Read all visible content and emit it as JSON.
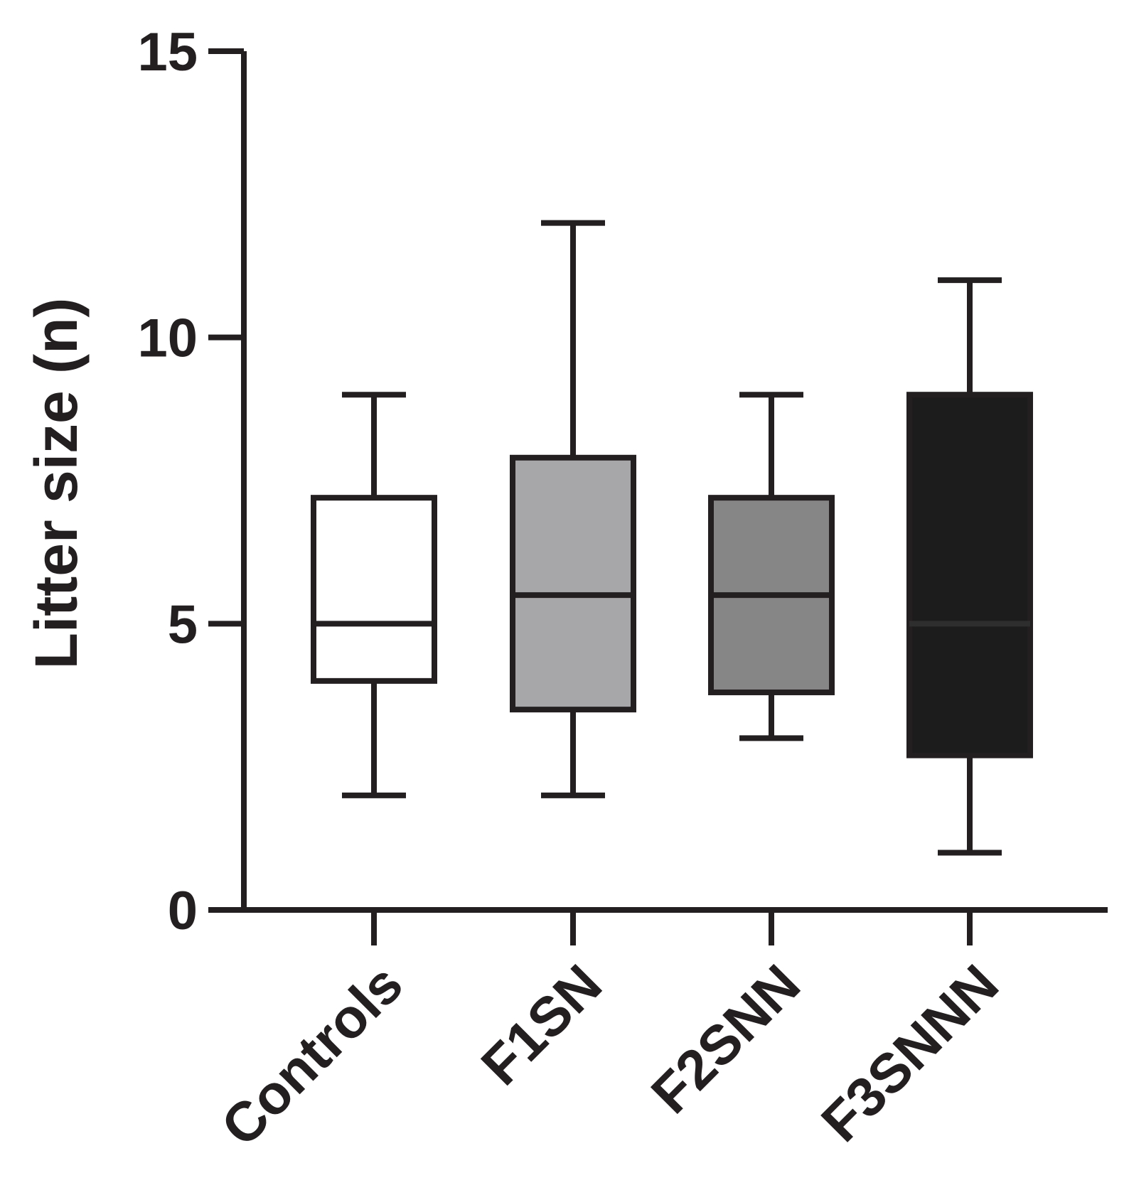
{
  "chart_data": {
    "type": "box",
    "ylabel": "Litter size  (n)",
    "xlabel": "",
    "ylim": [
      0,
      15
    ],
    "yticks": [
      "0",
      "5",
      "10",
      "15"
    ],
    "grid": false,
    "categories": [
      "Controls",
      "F1SN",
      "F2SNN",
      "F3SNNN"
    ],
    "boxes": [
      {
        "category": "Controls",
        "min": 2,
        "q1": 4,
        "median": 5,
        "q3": 7.2,
        "max": 9,
        "fill": "#ffffff"
      },
      {
        "category": "F1SN",
        "min": 2,
        "q1": 3.5,
        "median": 5.5,
        "q3": 7.9,
        "max": 12,
        "fill": "#a7a7a9"
      },
      {
        "category": "F2SNN",
        "min": 3,
        "q1": 3.8,
        "median": 5.5,
        "q3": 7.2,
        "max": 9,
        "fill": "#868686"
      },
      {
        "category": "F3SNNN",
        "min": 1,
        "q1": 2.7,
        "median": 5,
        "q3": 9,
        "max": 11,
        "fill": "#1c1c1c"
      }
    ],
    "colors": {
      "axis": "#231f20",
      "dark_median": "#2e2e2e"
    }
  }
}
